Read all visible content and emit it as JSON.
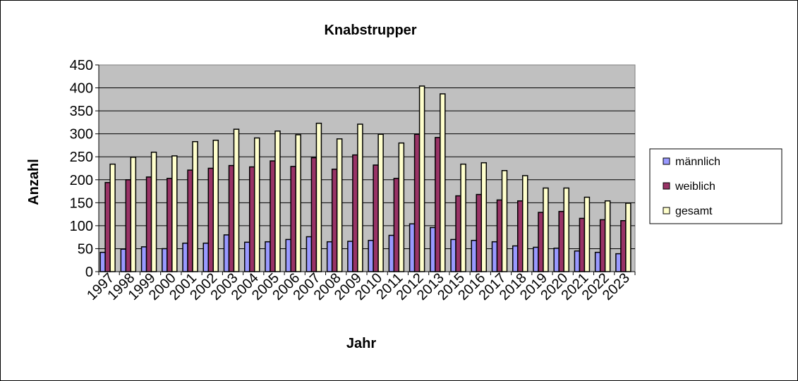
{
  "chart_data": {
    "type": "bar",
    "title": "Knabstrupper",
    "xlabel": "Jahr",
    "ylabel": "Anzahl",
    "ylim": [
      0,
      450
    ],
    "yticks": [
      0,
      50,
      100,
      150,
      200,
      250,
      300,
      350,
      400,
      450
    ],
    "grid": true,
    "legend_position": "right",
    "plot_background": "#C0C0C0",
    "categories": [
      "1997",
      "1998",
      "1999",
      "2000",
      "2001",
      "2002",
      "2003",
      "2004",
      "2005",
      "2006",
      "2007",
      "2008",
      "2009",
      "2010",
      "2011",
      "2012",
      "2013",
      "2015",
      "2016",
      "2017",
      "2018",
      "2019",
      "2020",
      "2021",
      "2022",
      "2023"
    ],
    "series": [
      {
        "name": "männlich",
        "color": "#9999FF",
        "values": [
          42,
          49,
          54,
          50,
          62,
          62,
          80,
          64,
          65,
          70,
          76,
          65,
          66,
          68,
          79,
          104,
          96,
          70,
          68,
          65,
          56,
          53,
          51,
          45,
          42,
          39
        ]
      },
      {
        "name": "weiblich",
        "color": "#993366",
        "values": [
          194,
          200,
          206,
          203,
          221,
          225,
          231,
          228,
          241,
          229,
          248,
          223,
          254,
          232,
          203,
          299,
          292,
          165,
          168,
          156,
          154,
          129,
          131,
          116,
          113,
          111
        ]
      },
      {
        "name": "gesamt",
        "color": "#FFFFCC",
        "values": [
          234,
          249,
          260,
          252,
          283,
          286,
          310,
          291,
          306,
          298,
          323,
          289,
          321,
          299,
          280,
          404,
          387,
          234,
          237,
          220,
          209,
          182,
          182,
          162,
          154,
          149
        ]
      }
    ]
  }
}
